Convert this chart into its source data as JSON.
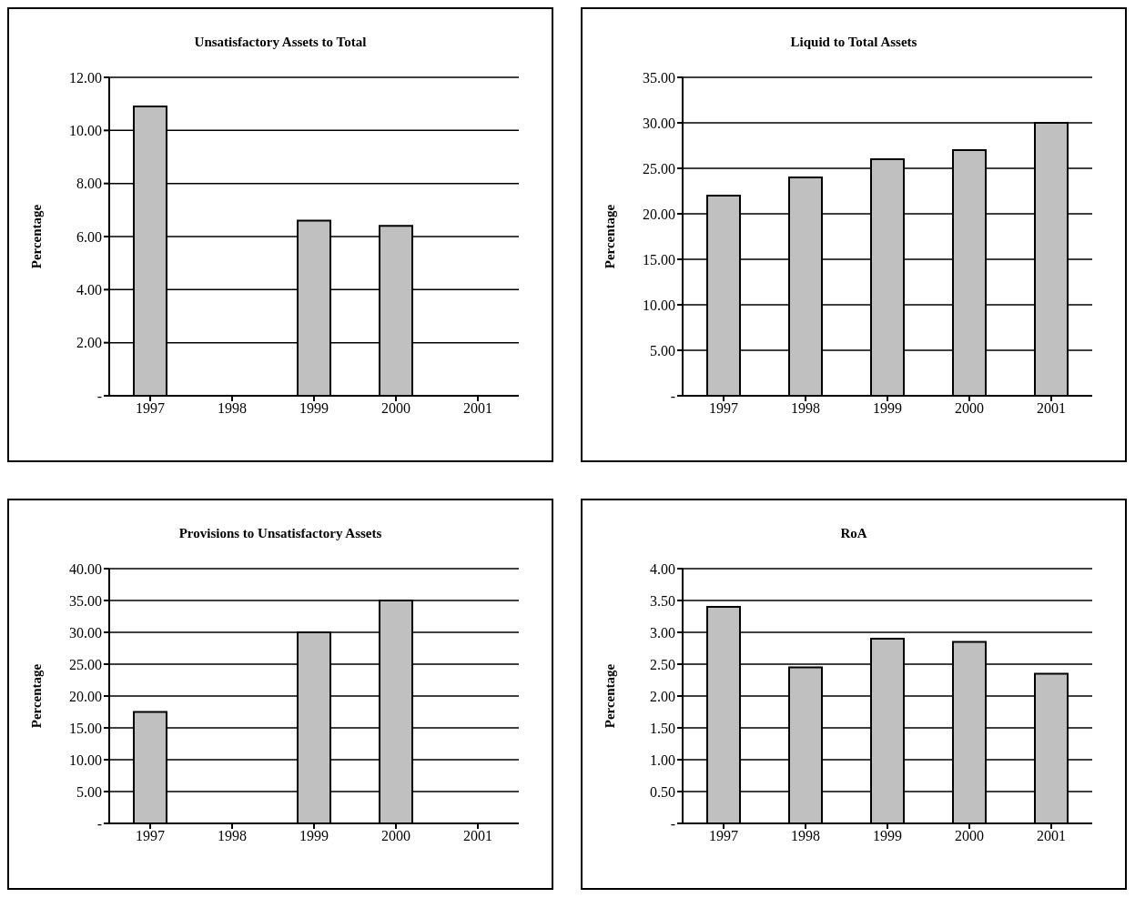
{
  "chart_data": [
    {
      "type": "bar",
      "title": "Unsatisfactory Assets to Total",
      "ylabel": "Percentage",
      "categories": [
        "1997",
        "1998",
        "1999",
        "2000",
        "2001"
      ],
      "values": [
        10.9,
        null,
        6.6,
        6.4,
        null
      ],
      "color": "#c0c0c0",
      "ylim": [
        0,
        12
      ],
      "yticks": [
        {
          "value": 0,
          "label": "-"
        },
        {
          "value": 2,
          "label": "2.00"
        },
        {
          "value": 4,
          "label": "4.00"
        },
        {
          "value": 6,
          "label": "6.00"
        },
        {
          "value": 8,
          "label": "8.00"
        },
        {
          "value": 10,
          "label": "10.00"
        },
        {
          "value": 12,
          "label": "12.00"
        }
      ],
      "grid": "y",
      "legend": false
    },
    {
      "type": "bar",
      "title": "Liquid to Total Assets",
      "ylabel": "Percentage",
      "categories": [
        "1997",
        "1998",
        "1999",
        "2000",
        "2001"
      ],
      "values": [
        22.0,
        24.0,
        26.0,
        27.0,
        30.0
      ],
      "color": "#c0c0c0",
      "ylim": [
        0,
        35
      ],
      "yticks": [
        {
          "value": 0,
          "label": "-"
        },
        {
          "value": 5,
          "label": "5.00"
        },
        {
          "value": 10,
          "label": "10.00"
        },
        {
          "value": 15,
          "label": "15.00"
        },
        {
          "value": 20,
          "label": "20.00"
        },
        {
          "value": 25,
          "label": "25.00"
        },
        {
          "value": 30,
          "label": "30.00"
        },
        {
          "value": 35,
          "label": "35.00"
        }
      ],
      "grid": "y",
      "legend": false
    },
    {
      "type": "bar",
      "title": "Provisions to Unsatisfactory Assets",
      "ylabel": "Percentage",
      "categories": [
        "1997",
        "1998",
        "1999",
        "2000",
        "2001"
      ],
      "values": [
        17.5,
        null,
        30.0,
        35.0,
        null
      ],
      "color": "#c0c0c0",
      "ylim": [
        0,
        40
      ],
      "yticks": [
        {
          "value": 0,
          "label": "-"
        },
        {
          "value": 5,
          "label": "5.00"
        },
        {
          "value": 10,
          "label": "10.00"
        },
        {
          "value": 15,
          "label": "15.00"
        },
        {
          "value": 20,
          "label": "20.00"
        },
        {
          "value": 25,
          "label": "25.00"
        },
        {
          "value": 30,
          "label": "30.00"
        },
        {
          "value": 35,
          "label": "35.00"
        },
        {
          "value": 40,
          "label": "40.00"
        }
      ],
      "grid": "y",
      "legend": false
    },
    {
      "type": "bar",
      "title": "RoA",
      "ylabel": "Percentage",
      "categories": [
        "1997",
        "1998",
        "1999",
        "2000",
        "2001"
      ],
      "values": [
        3.4,
        2.45,
        2.9,
        2.85,
        2.35
      ],
      "color": "#c0c0c0",
      "ylim": [
        0,
        4
      ],
      "yticks": [
        {
          "value": 0,
          "label": "-"
        },
        {
          "value": 0.5,
          "label": "0.50"
        },
        {
          "value": 1,
          "label": "1.00"
        },
        {
          "value": 1.5,
          "label": "1.50"
        },
        {
          "value": 2,
          "label": "2.00"
        },
        {
          "value": 2.5,
          "label": "2.50"
        },
        {
          "value": 3,
          "label": "3.00"
        },
        {
          "value": 3.5,
          "label": "3.50"
        },
        {
          "value": 4,
          "label": "4.00"
        }
      ],
      "grid": "y",
      "legend": false
    }
  ]
}
